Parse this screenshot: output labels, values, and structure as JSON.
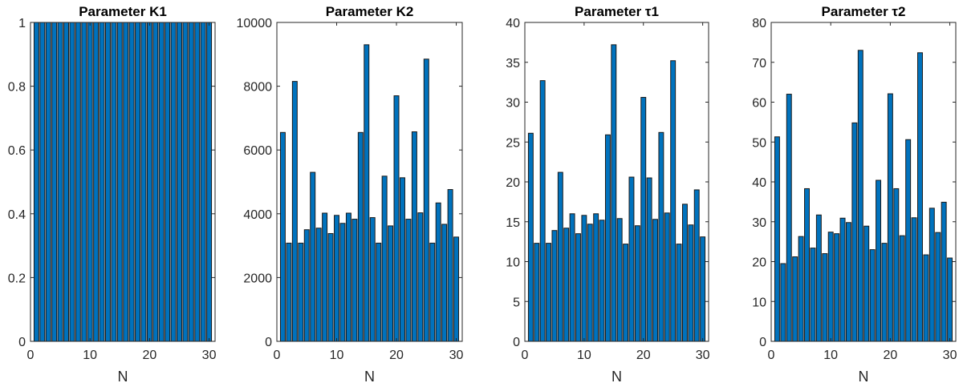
{
  "chart_data": [
    {
      "type": "bar",
      "title": "Parameter K1",
      "xlabel": "N",
      "ylabel": "",
      "x": [
        1,
        2,
        3,
        4,
        5,
        6,
        7,
        8,
        9,
        10,
        11,
        12,
        13,
        14,
        15,
        16,
        17,
        18,
        19,
        20,
        21,
        22,
        23,
        24,
        25,
        26,
        27,
        28,
        29,
        30
      ],
      "values": [
        1,
        1,
        1,
        1,
        1,
        1,
        1,
        1,
        1,
        1,
        1,
        1,
        1,
        1,
        1,
        1,
        1,
        1,
        1,
        1,
        1,
        1,
        1,
        1,
        1,
        1,
        1,
        1,
        1,
        1
      ],
      "xlim": [
        0,
        31
      ],
      "ylim": [
        0,
        1
      ],
      "xticks": [
        0,
        10,
        20,
        30
      ],
      "yticks": [
        0,
        0.2,
        0.4,
        0.6,
        0.8,
        1
      ],
      "xtick_labels": [
        "0",
        "10",
        "20",
        "30"
      ],
      "ytick_labels": [
        "0",
        "0.2",
        "0.4",
        "0.6",
        "0.8",
        "1"
      ],
      "bar_color": "#0072BD",
      "grid": false
    },
    {
      "type": "bar",
      "title": "Parameter K2",
      "xlabel": "N",
      "ylabel": "",
      "x": [
        1,
        2,
        3,
        4,
        5,
        6,
        7,
        8,
        9,
        10,
        11,
        12,
        13,
        14,
        15,
        16,
        17,
        18,
        19,
        20,
        21,
        22,
        23,
        24,
        25,
        26,
        27,
        28,
        29,
        30
      ],
      "values": [
        6550,
        3080,
        8150,
        3080,
        3500,
        5300,
        3550,
        4020,
        3380,
        3950,
        3700,
        4020,
        3830,
        6550,
        9300,
        3880,
        3080,
        5180,
        3620,
        7700,
        5130,
        3830,
        6570,
        4030,
        8850,
        3080,
        4340,
        3670,
        4760,
        3270
      ],
      "xlim": [
        0,
        31
      ],
      "ylim": [
        0,
        10000
      ],
      "xticks": [
        0,
        10,
        20,
        30
      ],
      "yticks": [
        0,
        2000,
        4000,
        6000,
        8000,
        10000
      ],
      "xtick_labels": [
        "0",
        "10",
        "20",
        "30"
      ],
      "ytick_labels": [
        "0",
        "2000",
        "4000",
        "6000",
        "8000",
        "10000"
      ],
      "bar_color": "#0072BD",
      "grid": false
    },
    {
      "type": "bar",
      "title": "Parameter τ1",
      "xlabel": "N",
      "ylabel": "",
      "x": [
        1,
        2,
        3,
        4,
        5,
        6,
        7,
        8,
        9,
        10,
        11,
        12,
        13,
        14,
        15,
        16,
        17,
        18,
        19,
        20,
        21,
        22,
        23,
        24,
        25,
        26,
        27,
        28,
        29,
        30
      ],
      "values": [
        26.1,
        12.3,
        32.7,
        12.3,
        13.9,
        21.2,
        14.2,
        16.0,
        13.5,
        15.8,
        14.7,
        16.0,
        15.2,
        25.9,
        37.2,
        15.4,
        12.2,
        20.6,
        14.5,
        30.6,
        20.5,
        15.3,
        26.2,
        16.1,
        35.2,
        12.2,
        17.2,
        14.6,
        19.0,
        13.1
      ],
      "xlim": [
        0,
        31
      ],
      "ylim": [
        0,
        40
      ],
      "xticks": [
        0,
        10,
        20,
        30
      ],
      "yticks": [
        0,
        5,
        10,
        15,
        20,
        25,
        30,
        35,
        40
      ],
      "xtick_labels": [
        "0",
        "10",
        "20",
        "30"
      ],
      "ytick_labels": [
        "0",
        "5",
        "10",
        "15",
        "20",
        "25",
        "30",
        "35",
        "40"
      ],
      "bar_color": "#0072BD",
      "grid": false
    },
    {
      "type": "bar",
      "title": "Parameter τ2",
      "xlabel": "N",
      "ylabel": "",
      "x": [
        1,
        2,
        3,
        4,
        5,
        6,
        7,
        8,
        9,
        10,
        11,
        12,
        13,
        14,
        15,
        16,
        17,
        18,
        19,
        20,
        21,
        22,
        23,
        24,
        25,
        26,
        27,
        28,
        29,
        30
      ],
      "values": [
        51.3,
        19.5,
        62.0,
        21.2,
        26.3,
        38.3,
        23.4,
        31.7,
        22.0,
        27.4,
        27.0,
        30.9,
        29.8,
        54.8,
        73.0,
        28.9,
        23.0,
        40.4,
        24.6,
        62.1,
        38.3,
        26.5,
        50.6,
        31.0,
        72.4,
        21.7,
        33.4,
        27.3,
        34.9,
        20.9
      ],
      "xlim": [
        0,
        31
      ],
      "ylim": [
        0,
        80
      ],
      "xticks": [
        0,
        10,
        20,
        30
      ],
      "yticks": [
        0,
        10,
        20,
        30,
        40,
        50,
        60,
        70,
        80
      ],
      "xtick_labels": [
        "0",
        "10",
        "20",
        "30"
      ],
      "ytick_labels": [
        "0",
        "10",
        "20",
        "30",
        "40",
        "50",
        "60",
        "70",
        "80"
      ],
      "bar_color": "#0072BD",
      "grid": false
    }
  ]
}
